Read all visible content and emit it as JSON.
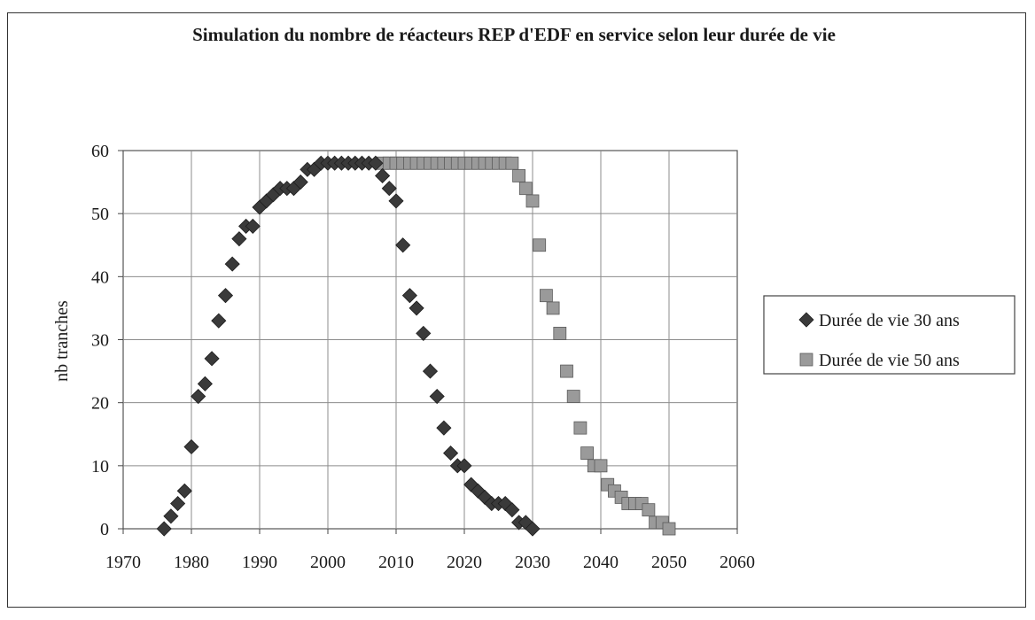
{
  "chart_data": {
    "type": "scatter",
    "title": "Simulation du nombre de réacteurs REP d'EDF en service selon leur durée de vie",
    "xlabel": "",
    "ylabel": "nb tranches",
    "xlim": [
      1970,
      2060
    ],
    "ylim": [
      0,
      60
    ],
    "xticks": [
      "1970",
      "1980",
      "1990",
      "2000",
      "2010",
      "2020",
      "2030",
      "2040",
      "2050",
      "2060"
    ],
    "yticks": [
      "0",
      "10",
      "20",
      "30",
      "40",
      "50",
      "60"
    ],
    "grid": true,
    "legend_position": "right",
    "series": [
      {
        "name": "Durée de vie 30 ans",
        "marker": "diamond",
        "color": "#3a3a3a",
        "x": [
          1976,
          1977,
          1978,
          1979,
          1980,
          1981,
          1982,
          1983,
          1984,
          1985,
          1986,
          1987,
          1988,
          1989,
          1990,
          1991,
          1992,
          1993,
          1994,
          1995,
          1996,
          1997,
          1998,
          1999,
          2000,
          2001,
          2002,
          2003,
          2004,
          2005,
          2006,
          2007,
          2008,
          2009,
          2010,
          2011,
          2012,
          2013,
          2014,
          2015,
          2016,
          2017,
          2018,
          2019,
          2020,
          2021,
          2022,
          2023,
          2024,
          2025,
          2026,
          2027,
          2028,
          2029,
          2030
        ],
        "y": [
          0,
          2,
          4,
          6,
          13,
          21,
          23,
          27,
          33,
          37,
          42,
          46,
          48,
          48,
          51,
          52,
          53,
          54,
          54,
          54,
          55,
          57,
          57,
          58,
          58,
          58,
          58,
          58,
          58,
          58,
          58,
          58,
          56,
          54,
          52,
          45,
          37,
          35,
          31,
          25,
          21,
          16,
          12,
          10,
          10,
          7,
          6,
          5,
          4,
          4,
          4,
          3,
          1,
          1,
          0
        ]
      },
      {
        "name": "Durée de vie 50 ans",
        "marker": "square",
        "color": "#9a9a9a",
        "x": [
          2008,
          2009,
          2010,
          2011,
          2012,
          2013,
          2014,
          2015,
          2016,
          2017,
          2018,
          2019,
          2020,
          2021,
          2022,
          2023,
          2024,
          2025,
          2026,
          2027,
          2028,
          2029,
          2030,
          2031,
          2032,
          2033,
          2034,
          2035,
          2036,
          2037,
          2038,
          2039,
          2040,
          2041,
          2042,
          2043,
          2044,
          2045,
          2046,
          2047,
          2048,
          2049,
          2050
        ],
        "y": [
          58,
          58,
          58,
          58,
          58,
          58,
          58,
          58,
          58,
          58,
          58,
          58,
          58,
          58,
          58,
          58,
          58,
          58,
          58,
          58,
          56,
          54,
          52,
          45,
          37,
          35,
          31,
          25,
          21,
          16,
          12,
          10,
          10,
          7,
          6,
          5,
          4,
          4,
          4,
          3,
          1,
          1,
          0
        ]
      }
    ]
  }
}
